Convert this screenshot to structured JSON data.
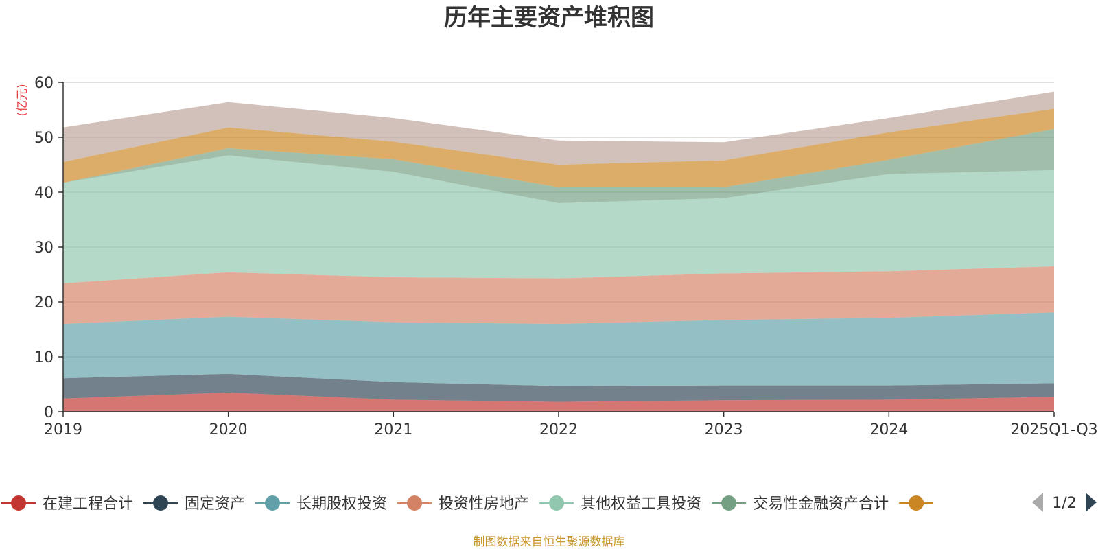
{
  "chart_data": {
    "type": "area",
    "stacked": true,
    "title": "历年主要资产堆积图",
    "ylabel": "(亿元)",
    "ylim": [
      0,
      60
    ],
    "yticks": [
      0,
      10,
      20,
      30,
      40,
      50,
      60
    ],
    "grid": true,
    "categories": [
      "2019",
      "2020",
      "2021",
      "2022",
      "2023",
      "2024",
      "2025Q1-Q3"
    ],
    "series": [
      {
        "name": "在建工程合计",
        "color": "#c23531",
        "values": [
          2.4,
          3.5,
          2.2,
          1.8,
          2.1,
          2.2,
          2.7
        ]
      },
      {
        "name": "固定资产",
        "color": "#2f4554",
        "values": [
          3.7,
          3.4,
          3.2,
          2.9,
          2.7,
          2.6,
          2.5
        ]
      },
      {
        "name": "长期股权投资",
        "color": "#61a0a8",
        "values": [
          9.9,
          10.4,
          10.9,
          11.3,
          11.9,
          12.3,
          12.9
        ]
      },
      {
        "name": "投资性房地产",
        "color": "#d48265",
        "values": [
          7.4,
          8.1,
          8.2,
          8.3,
          8.5,
          8.5,
          8.4
        ]
      },
      {
        "name": "其他权益工具投资",
        "color": "#91c7ae",
        "values": [
          18.3,
          21.3,
          19.2,
          13.7,
          13.7,
          17.7,
          17.5
        ]
      },
      {
        "name": "交易性金融资产合计",
        "color": "#749f83",
        "values": [
          0.0,
          1.3,
          2.3,
          2.9,
          2.0,
          2.6,
          7.5
        ]
      },
      {
        "name": "",
        "color": "#ca8622",
        "values": [
          3.8,
          3.8,
          3.2,
          4.1,
          4.9,
          5.0,
          3.7
        ]
      },
      {
        "name": "",
        "color": "#bda29a",
        "values": [
          6.3,
          4.6,
          4.3,
          4.4,
          3.3,
          2.6,
          3.1
        ]
      }
    ],
    "legend": {
      "position": "bottom",
      "page": "1/2"
    },
    "source": "制图数据来自恒生聚源数据库"
  }
}
